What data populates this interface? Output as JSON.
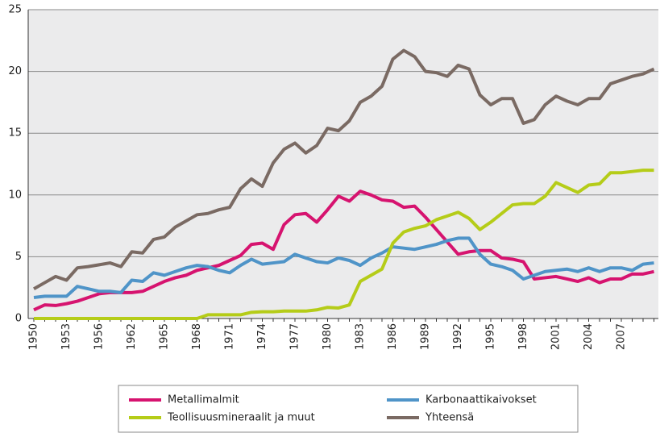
{
  "chart_data": {
    "type": "line",
    "categories": [
      "1950",
      null,
      null,
      "1953",
      null,
      null,
      "1956",
      null,
      null,
      "1962",
      null,
      null,
      "1965",
      null,
      null,
      "1968",
      null,
      null,
      "1971",
      null,
      null,
      "1974",
      null,
      null,
      "1977",
      null,
      null,
      "1980",
      null,
      null,
      "1983",
      null,
      null,
      "1986",
      null,
      null,
      "1989",
      null,
      null,
      "1992",
      null,
      null,
      "1995",
      null,
      null,
      "1998",
      null,
      null,
      "2001",
      null,
      null,
      "2004",
      null,
      null,
      "2007",
      null,
      null,
      null
    ],
    "ylim": [
      0,
      25
    ],
    "yticks": [
      0,
      5,
      10,
      15,
      20,
      25
    ],
    "grid": true,
    "series": [
      {
        "name": "Metallimalmit",
        "color": "#d6136f",
        "values": [
          0.7,
          1.1,
          1.05,
          1.2,
          1.4,
          1.7,
          2.0,
          2.1,
          2.1,
          2.1,
          2.2,
          2.6,
          3.0,
          3.3,
          3.5,
          3.9,
          4.1,
          4.3,
          4.7,
          5.1,
          6.0,
          6.1,
          5.6,
          7.6,
          8.4,
          8.5,
          7.8,
          8.8,
          9.9,
          9.5,
          10.3,
          10.0,
          9.6,
          9.5,
          9.0,
          9.1,
          8.2,
          7.2,
          6.2,
          5.2,
          5.4,
          5.5,
          5.5,
          4.9,
          4.8,
          4.6,
          3.2,
          3.3,
          3.4,
          3.2,
          3.0,
          3.3,
          2.9,
          3.2,
          3.2,
          3.6,
          3.6,
          3.8
        ]
      },
      {
        "name": "Karbonaattikaivokset",
        "color": "#4f94c8",
        "values": [
          1.7,
          1.8,
          1.8,
          1.8,
          2.6,
          2.4,
          2.2,
          2.2,
          2.1,
          3.1,
          3.0,
          3.7,
          3.5,
          3.8,
          4.1,
          4.3,
          4.2,
          3.9,
          3.7,
          4.3,
          4.8,
          4.4,
          4.5,
          4.6,
          5.2,
          4.9,
          4.6,
          4.5,
          4.9,
          4.7,
          4.3,
          4.9,
          5.3,
          5.8,
          5.7,
          5.6,
          5.8,
          6.0,
          6.3,
          6.5,
          6.5,
          5.2,
          4.4,
          4.2,
          3.9,
          3.2,
          3.5,
          3.8,
          3.9,
          4.0,
          3.8,
          4.1,
          3.8,
          4.1,
          4.1,
          3.9,
          4.4,
          4.5
        ]
      },
      {
        "name": "Teollisuusmineraalit ja muut",
        "color": "#b5cc18",
        "values": [
          0,
          0,
          0,
          0,
          0,
          0,
          0,
          0,
          0,
          0,
          0,
          0,
          0,
          0,
          0,
          0,
          0.3,
          0.3,
          0.3,
          0.3,
          0.5,
          0.55,
          0.55,
          0.6,
          0.6,
          0.6,
          0.7,
          0.9,
          0.85,
          1.1,
          3.0,
          3.5,
          4.0,
          6.1,
          7.0,
          7.3,
          7.5,
          8.0,
          8.3,
          8.6,
          8.1,
          7.2,
          7.8,
          8.5,
          9.2,
          9.3,
          9.3,
          9.9,
          11.0,
          10.6,
          10.2,
          10.8,
          10.9,
          11.8,
          11.8,
          11.9,
          12.0,
          12.0
        ]
      },
      {
        "name": "Yhteensä",
        "color": "#7a6a63",
        "values": [
          2.4,
          2.9,
          3.4,
          3.1,
          4.1,
          4.2,
          4.35,
          4.5,
          4.2,
          5.4,
          5.3,
          6.4,
          6.6,
          7.4,
          7.9,
          8.4,
          8.5,
          8.8,
          9.0,
          10.5,
          11.3,
          10.7,
          12.6,
          13.7,
          14.2,
          13.4,
          14.0,
          15.4,
          15.2,
          16.0,
          17.5,
          18.0,
          18.8,
          21.0,
          21.7,
          21.2,
          20.0,
          19.9,
          19.6,
          20.5,
          20.2,
          18.1,
          17.3,
          17.8,
          17.8,
          15.8,
          16.1,
          17.3,
          18.0,
          17.6,
          17.3,
          17.8,
          17.8,
          19.0,
          19.3,
          19.6,
          19.8,
          20.2
        ]
      }
    ]
  }
}
